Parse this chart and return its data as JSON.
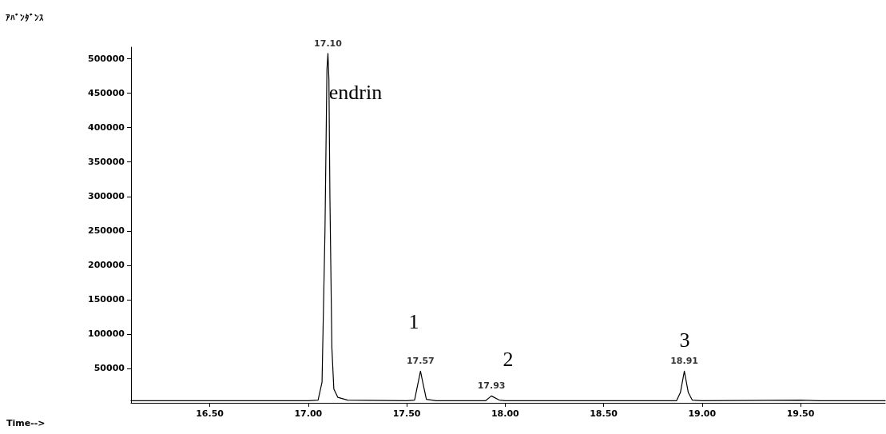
{
  "chart_data": {
    "type": "line",
    "title": "ｱﾊﾞﾝﾀﾞﾝｽ",
    "xlabel": "Time-->",
    "x": [
      16.1,
      16.5,
      17.0,
      17.05,
      17.07,
      17.085,
      17.095,
      17.1,
      17.105,
      17.11,
      17.12,
      17.13,
      17.15,
      17.2,
      17.5,
      17.54,
      17.555,
      17.57,
      17.585,
      17.6,
      17.65,
      17.9,
      17.93,
      17.97,
      18.0,
      18.87,
      18.89,
      18.91,
      18.93,
      18.95,
      19.0,
      19.5,
      19.6,
      19.93
    ],
    "series": [
      {
        "color": "#000000",
        "values": [
          3000,
          3000,
          3000,
          4000,
          30000,
          250000,
          485000,
          508000,
          470000,
          300000,
          80000,
          20000,
          8000,
          4000,
          3000,
          4000,
          25000,
          46000,
          25000,
          5000,
          3000,
          3000,
          10000,
          4000,
          3000,
          3000,
          15000,
          46000,
          15000,
          4000,
          3000,
          4000,
          3000,
          3000
        ]
      }
    ],
    "xlim": [
      16.1,
      19.93
    ],
    "ylim": [
      0,
      517000
    ],
    "xticks": [
      {
        "value": 16.5,
        "label": "16.50"
      },
      {
        "value": 17.0,
        "label": "17.00"
      },
      {
        "value": 17.5,
        "label": "17.50"
      },
      {
        "value": 18.0,
        "label": "18.00"
      },
      {
        "value": 18.5,
        "label": "18.50"
      },
      {
        "value": 19.0,
        "label": "19.00"
      },
      {
        "value": 19.5,
        "label": "19.50"
      }
    ],
    "yticks": [
      50000,
      100000,
      150000,
      200000,
      250000,
      300000,
      350000,
      400000,
      450000,
      500000
    ],
    "annotations": [
      {
        "text": "17.10",
        "x": 17.1,
        "y": 508000
      },
      {
        "text": "17.57",
        "x": 17.57,
        "y": 46000
      },
      {
        "text": "17.93",
        "x": 17.93,
        "y": 10000
      },
      {
        "text": "18.91",
        "x": 18.91,
        "y": 46000
      },
      "endrin",
      "1",
      "2",
      "3"
    ],
    "grid": false,
    "marker": "none",
    "line_style": "solid"
  }
}
